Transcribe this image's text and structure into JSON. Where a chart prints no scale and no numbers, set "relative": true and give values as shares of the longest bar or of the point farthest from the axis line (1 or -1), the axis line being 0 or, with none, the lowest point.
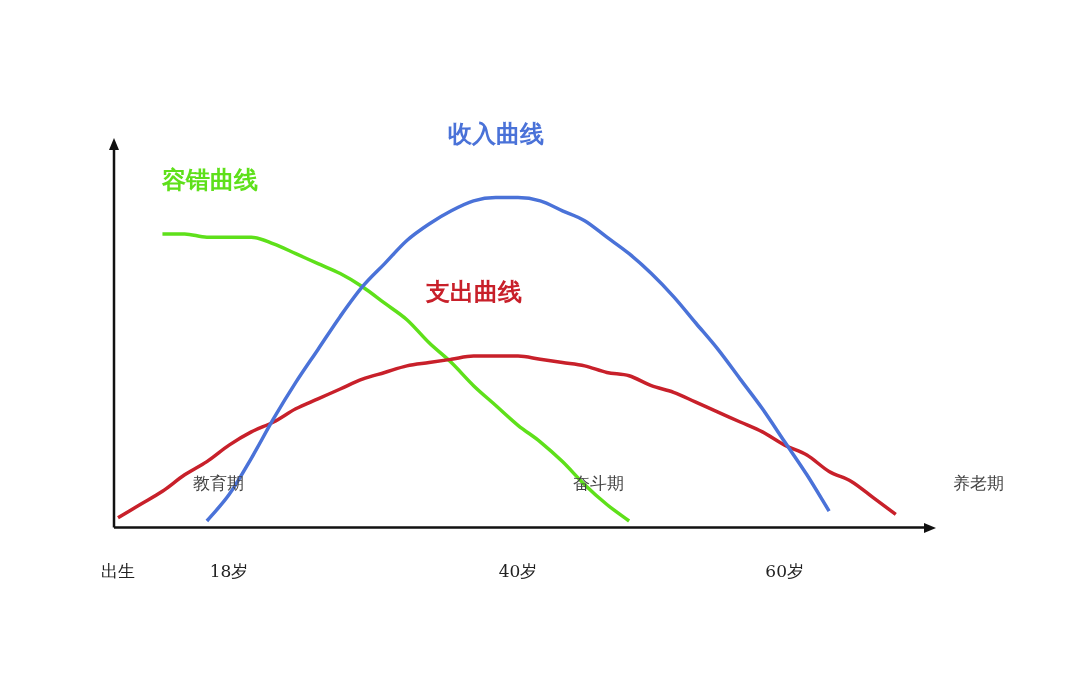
{
  "chart_data": {
    "type": "line",
    "relative": true,
    "legend": false,
    "grid": false,
    "marker": "none",
    "categories": [
      "出生",
      null,
      null,
      null,
      null,
      "18岁",
      null,
      null,
      null,
      null,
      null,
      null,
      null,
      null,
      null,
      null,
      null,
      null,
      "40岁",
      null,
      null,
      null,
      null,
      null,
      null,
      null,
      null,
      null,
      null,
      null,
      "60岁",
      null,
      null,
      null,
      null,
      null,
      null
    ],
    "series": [
      {
        "name": "收入曲线",
        "color": "#4a72d8",
        "values": [
          null,
          null,
          null,
          null,
          0.02,
          0.1,
          0.21,
          0.33,
          0.44,
          0.54,
          0.64,
          0.73,
          0.8,
          0.87,
          0.92,
          0.96,
          0.99,
          1.0,
          1.0,
          0.99,
          0.96,
          0.93,
          0.88,
          0.83,
          0.77,
          0.7,
          0.62,
          0.54,
          0.45,
          0.36,
          0.26,
          0.16,
          0.05,
          null,
          null,
          null,
          null
        ]
      },
      {
        "name": "支出曲线",
        "color": "#c8202a",
        "values": [
          0.03,
          0.07,
          0.11,
          0.16,
          0.2,
          0.25,
          0.29,
          0.32,
          0.36,
          0.39,
          0.42,
          0.45,
          0.47,
          0.49,
          0.5,
          0.51,
          0.52,
          0.52,
          0.52,
          0.51,
          0.5,
          0.49,
          0.47,
          0.46,
          0.43,
          0.41,
          0.38,
          0.35,
          0.32,
          0.29,
          0.25,
          0.22,
          0.17,
          0.14,
          0.09,
          0.04,
          null
        ]
      },
      {
        "name": "容错曲线",
        "color": "#5ee01a",
        "values": [
          null,
          null,
          0.89,
          0.89,
          0.88,
          0.88,
          0.88,
          0.86,
          0.83,
          0.8,
          0.77,
          0.73,
          0.68,
          0.63,
          0.56,
          0.5,
          0.43,
          0.37,
          0.31,
          0.26,
          0.2,
          0.13,
          0.07,
          0.02,
          null,
          null,
          null,
          null,
          null,
          null,
          null,
          null,
          null,
          null,
          null,
          null,
          null
        ]
      }
    ],
    "annotations": [
      "教育期",
      "奋斗期",
      "养老期"
    ]
  }
}
